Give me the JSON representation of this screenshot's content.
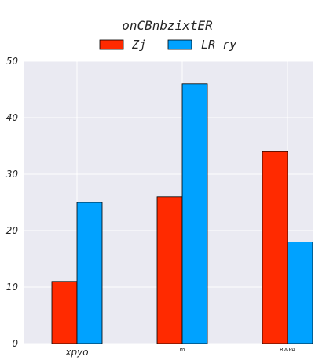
{
  "chart_data": {
    "type": "bar",
    "title": "onCBnbzixtER",
    "categories": [
      "xpyo",
      "m",
      "RWPA"
    ],
    "series": [
      {
        "name": "Zj",
        "values": [
          11,
          26,
          34
        ],
        "color": "#ff2a00"
      },
      {
        "name": "LR ry",
        "values": [
          25,
          46,
          18
        ],
        "color": "#00a2ff"
      }
    ],
    "ylim": [
      0,
      50
    ],
    "yticks": [
      "0",
      "10",
      "20",
      "30",
      "40",
      "50"
    ],
    "grid": true,
    "legend": "top-center",
    "background": "#eaeaf2"
  }
}
